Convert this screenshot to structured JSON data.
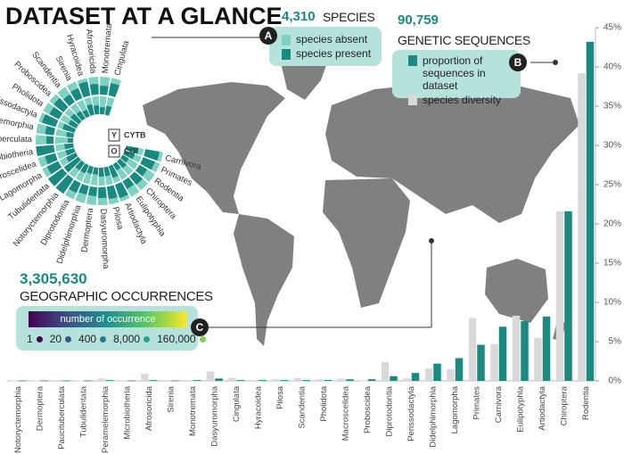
{
  "header": {
    "title": "DATASET AT A GLANCE"
  },
  "species_callout": {
    "marker": "A",
    "count": "4,310",
    "label": "SPECIES",
    "legend": [
      {
        "name": "species absent",
        "color": "#7fd1c2"
      },
      {
        "name": "species present",
        "color": "#1a8a80"
      }
    ]
  },
  "sequences_callout": {
    "marker": "B",
    "count": "90,759",
    "label": "GENETIC SEQUENCES"
  },
  "occurrences_callout": {
    "marker": "C",
    "count": "3,305,630",
    "label": "GEOGRAPHIC OCCURRENCES",
    "scale_label": "number of occurrence",
    "sizes": [
      {
        "label": "1",
        "color": "#440154"
      },
      {
        "label": "20",
        "color": "#3b528b"
      },
      {
        "label": "400",
        "color": "#2a788e"
      },
      {
        "label": "8,000",
        "color": "#22a884"
      },
      {
        "label": "160,000",
        "color": "#7ad151"
      }
    ]
  },
  "radial_chart": {
    "labels": [
      "Cingulata",
      "Monotremata",
      "Afrosoricida",
      "Hyracoidea",
      "Sirenia",
      "Scandentia",
      "Proboscidea",
      "Pholidota",
      "Perissodactyla",
      "Peramelemorphia",
      "Paucituberculata",
      "Microbiotheria",
      "Macroscelidea",
      "Lagomorpha",
      "Tubulidentata",
      "Notoryctemorphia",
      "Diprotodontia",
      "Didelphimorphia",
      "Dermoptera",
      "Dasyuromorpha",
      "Pilosa",
      "Artiodactyla",
      "Eulipotyphla",
      "Chiroptera",
      "Rodentia",
      "Primates",
      "Carnivora"
    ],
    "rings": [
      {
        "key": "Y",
        "name": "CYTB",
        "values": [
          0.7,
          0.5,
          0.6,
          0.8,
          0.6,
          0.5,
          0.7,
          0.6,
          0.8,
          0.5,
          0.4,
          1,
          0.6,
          0.7,
          1,
          1,
          0.6,
          0.5,
          0.5,
          0.6,
          0.7,
          0.8,
          0.5,
          0.6,
          0.5,
          0.7,
          0.8
        ]
      },
      {
        "key": "O",
        "name": "COI",
        "values": [
          0.5,
          0.4,
          0.5,
          0.6,
          0.4,
          0.5,
          0.6,
          0.5,
          0.7,
          0.4,
          0.3,
          0.5,
          0.5,
          0.6,
          1,
          0.5,
          0.5,
          0.4,
          0.4,
          0.5,
          0.5,
          0.7,
          0.4,
          0.5,
          0.4,
          0.6,
          0.7
        ]
      }
    ]
  },
  "chart_data": {
    "type": "bar",
    "categories": [
      "Notoryctemorphia",
      "Dermoptera",
      "Paucituberculata",
      "Tubulidentata",
      "Peramelemorphia",
      "Microbiotheria",
      "Afrosoricida",
      "Sirenia",
      "Monotremata",
      "Dasyuromorpha",
      "Cingulata",
      "Hyracoidea",
      "Pilosa",
      "Scandentia",
      "Pholidota",
      "Macroscelidea",
      "Proboscidea",
      "Diprotodontia",
      "Perissodactyla",
      "Didelphimorphia",
      "Lagomorpha",
      "Primates",
      "Carnivora",
      "Eulipotyphla",
      "Artiodactyla",
      "Chiroptera",
      "Rodentia"
    ],
    "series": [
      {
        "name": "proportion of sequences in dataset",
        "color": "#1a8a80",
        "values": [
          0.05,
          0.05,
          0.05,
          0.05,
          0.1,
          0.05,
          0.1,
          0.05,
          0.1,
          0.3,
          0.1,
          0.1,
          0.1,
          0.1,
          0.1,
          0.2,
          0.2,
          0.6,
          1.0,
          2.2,
          2.9,
          4.6,
          6.9,
          7.6,
          8.2,
          21.6,
          43.2
        ]
      },
      {
        "name": "species diversity",
        "color": "#d9d9d9",
        "values": [
          0.05,
          0.05,
          0.1,
          0.05,
          0.3,
          0.05,
          0.9,
          0.1,
          0.1,
          1.2,
          0.4,
          0.1,
          0.2,
          0.4,
          0.2,
          0.3,
          0.05,
          2.4,
          0.3,
          1.6,
          1.5,
          8.0,
          4.7,
          8.3,
          5.5,
          21.6,
          39.2
        ]
      }
    ],
    "ylim": [
      0,
      45
    ],
    "yticks": [
      {
        "value": 0,
        "label": "0%"
      },
      {
        "value": 5,
        "label": "5%"
      },
      {
        "value": 10,
        "label": "10%"
      },
      {
        "value": 15,
        "label": "15%"
      },
      {
        "value": 20,
        "label": "20%"
      },
      {
        "value": 25,
        "label": "25%"
      },
      {
        "value": 30,
        "label": "30%"
      },
      {
        "value": 35,
        "label": "35%"
      },
      {
        "value": 40,
        "label": "40%"
      },
      {
        "value": 45,
        "label": "45%"
      }
    ]
  }
}
